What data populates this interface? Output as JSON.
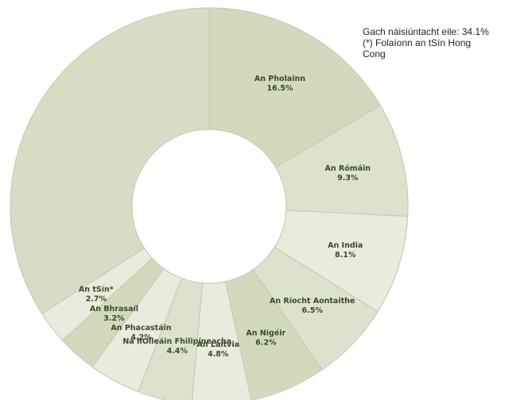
{
  "chart_data": {
    "type": "pie",
    "donut": true,
    "start_angle_deg": 0,
    "direction": "clockwise",
    "slices": [
      {
        "label": "An Pholainn",
        "value": 16.5,
        "value_label": "16.5%"
      },
      {
        "label": "An Rómáin",
        "value": 9.3,
        "value_label": "9.3%"
      },
      {
        "label": "An India",
        "value": 8.1,
        "value_label": "8.1%"
      },
      {
        "label": "An Ríocht Aontaithe",
        "value": 6.5,
        "value_label": "6.5%"
      },
      {
        "label": "An Nigéir",
        "value": 6.2,
        "value_label": "6.2%"
      },
      {
        "label": "An Laitvia",
        "value": 4.8,
        "value_label": "4.8%"
      },
      {
        "label": "Na hOileáin Fhilipíneacha",
        "value": 4.4,
        "value_label": "4.4%"
      },
      {
        "label": "An Phacastáin",
        "value": 4.2,
        "value_label": "4.2%"
      },
      {
        "label": "An Bhrasaíl",
        "value": 3.2,
        "value_label": "3.2%"
      },
      {
        "label": "An tSín*",
        "value": 2.7,
        "value_label": "2.7%"
      }
    ],
    "remainder": {
      "label": "Gach náisiúntacht eile",
      "value": 34.1
    },
    "annotation": {
      "line1": "Gach náisiúntacht eile: 34.1%",
      "line2": "(*) Folaíonn an tSín Hong",
      "line3": "Cong"
    },
    "legend": "none",
    "colors": {
      "slice_light": "#e9ecdd",
      "slice_mid": "#dde2cd",
      "slice_dark": "#d2d9bd",
      "stroke": "#c6cdb6",
      "label_text": "#3b4a26"
    }
  }
}
